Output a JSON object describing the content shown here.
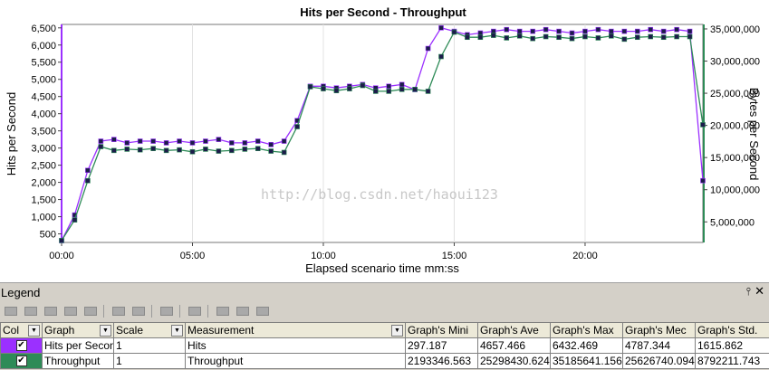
{
  "chart_data": {
    "type": "line",
    "title": "Hits per Second - Throughput",
    "xlabel": "Elapsed scenario time mm:ss",
    "ylabel_left": "Hits per Second",
    "ylabel_right": "Bytes per Second",
    "x_tick_labels": [
      "00:00",
      "05:00",
      "10:00",
      "15:00",
      "20:00"
    ],
    "y_left_tick_labels": [
      "500",
      "1,000",
      "1,500",
      "2,000",
      "2,500",
      "3,000",
      "3,500",
      "4,000",
      "4,500",
      "5,000",
      "5,500",
      "6,000",
      "6,500"
    ],
    "y_right_tick_labels": [
      "5,000,000",
      "10,000,000",
      "15,000,000",
      "20,000,000",
      "25,000,000",
      "30,000,000",
      "35,000,000"
    ],
    "xlim_seconds": [
      0,
      1470
    ],
    "ylim_left": [
      250,
      6600
    ],
    "ylim_right": [
      1800000,
      35700000
    ],
    "grid": "vertical",
    "x_seconds": [
      0,
      30,
      60,
      90,
      120,
      150,
      180,
      210,
      240,
      270,
      300,
      330,
      360,
      390,
      420,
      450,
      480,
      510,
      540,
      570,
      600,
      630,
      660,
      690,
      720,
      750,
      780,
      810,
      840,
      870,
      900,
      930,
      960,
      990,
      1020,
      1050,
      1080,
      1110,
      1140,
      1170,
      1200,
      1230,
      1260,
      1290,
      1320,
      1350,
      1380,
      1410,
      1440,
      1470
    ],
    "series": [
      {
        "name": "Hits per Second",
        "color": "#9b30ff",
        "axis": "left",
        "values": [
          300,
          1050,
          2350,
          3200,
          3250,
          3150,
          3200,
          3200,
          3150,
          3200,
          3150,
          3200,
          3250,
          3150,
          3150,
          3200,
          3100,
          3200,
          3800,
          4800,
          4800,
          4750,
          4800,
          4850,
          4750,
          4800,
          4850,
          4700,
          5900,
          6500,
          6400,
          6300,
          6350,
          6400,
          6450,
          6400,
          6400,
          6450,
          6400,
          6350,
          6400,
          6450,
          6400,
          6400,
          6400,
          6450,
          6400,
          6450,
          6400,
          2050
        ]
      },
      {
        "name": "Throughput",
        "color": "#2e8b57",
        "axis": "right",
        "values": [
          2100000,
          5300000,
          11400000,
          16700000,
          16100000,
          16300000,
          16200000,
          16400000,
          16100000,
          16200000,
          15900000,
          16300000,
          16000000,
          16100000,
          16300000,
          16400000,
          16000000,
          15800000,
          19800000,
          26000000,
          25700000,
          25400000,
          25700000,
          26200000,
          25300000,
          25300000,
          25600000,
          25600000,
          25300000,
          30700000,
          34500000,
          33700000,
          33700000,
          34000000,
          33600000,
          33900000,
          33500000,
          33800000,
          33700000,
          33500000,
          33800000,
          33600000,
          33900000,
          33400000,
          33700000,
          33800000,
          33700000,
          33800000,
          33800000,
          20100000
        ]
      }
    ]
  },
  "watermark": "http://blog.csdn.net/haoui123",
  "legend": {
    "title": "Legend",
    "columns": [
      "Col",
      "Graph",
      "Scale",
      "Measurement",
      "Graph's Mini",
      "Graph's Ave",
      "Graph's Max",
      "Graph's Mec",
      "Graph's Std."
    ],
    "rows": [
      {
        "color": "#9b30ff",
        "checked": "✔",
        "graph": "Hits per Second",
        "scale": "1",
        "measurement": "Hits",
        "min": "297.187",
        "avg": "4657.466",
        "max": "6432.469",
        "median": "4787.344",
        "std": "1615.862"
      },
      {
        "color": "#2e8b57",
        "checked": "✔",
        "graph": "Throughput",
        "scale": "1",
        "measurement": "Throughput",
        "min": "2193346.563",
        "avg": "25298430.624",
        "max": "35185641.156",
        "median": "25626740.094",
        "std": "8792211.743"
      }
    ]
  }
}
